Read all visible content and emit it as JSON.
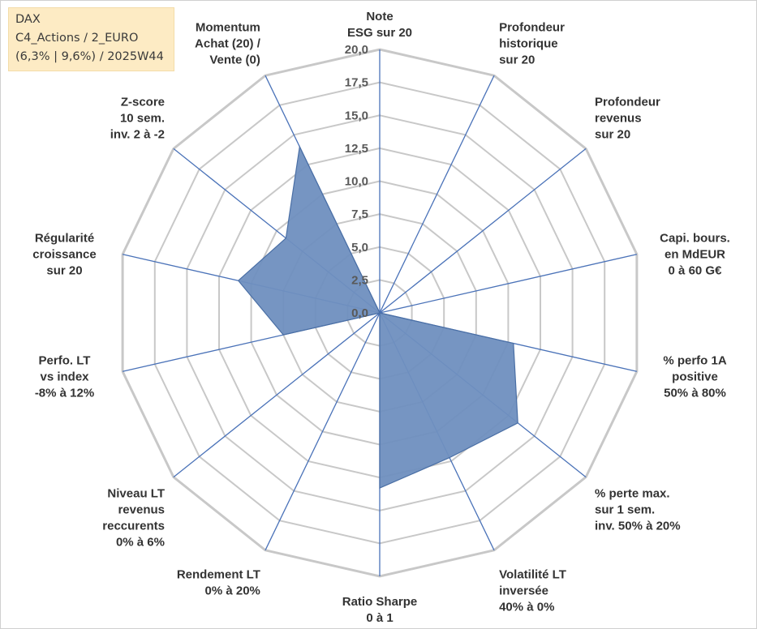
{
  "header": {
    "line1": "DAX",
    "line2": "C4_Actions / 2_EURO",
    "line3": "(6,3% | 9,6%) / 2025W44"
  },
  "chart_data": {
    "type": "radar",
    "title": "",
    "range": [
      0,
      20
    ],
    "tick_labels": [
      "0,0",
      "2,5",
      "5,0",
      "7,5",
      "10,0",
      "12,5",
      "15,0",
      "17,5",
      "20,0"
    ],
    "axes": [
      [
        "Note",
        "ESG sur 20"
      ],
      [
        "Profondeur",
        "historique",
        "sur 20"
      ],
      [
        "Profondeur",
        "revenus",
        "sur 20"
      ],
      [
        "Capi. bours.",
        "en MdEUR",
        "0 à 60 G€"
      ],
      [
        "% perfo 1A",
        "positive",
        "50% à 80%"
      ],
      [
        "% perte max.",
        "sur 1 sem.",
        "inv. 50% à 20%"
      ],
      [
        "Volatilité LT",
        "inversée",
        "40% à 0%"
      ],
      [
        "Ratio Sharpe",
        "0 à 1"
      ],
      [
        "Rendement LT",
        "0% à 20%"
      ],
      [
        "Niveau LT",
        "revenus",
        "reccurents",
        "0% à 6%"
      ],
      [
        "Perfo. LT",
        "vs index",
        "-8% à 12%"
      ],
      [
        "Régularité",
        "croissance",
        "sur 20"
      ],
      [
        "Z-score",
        "10 sem.",
        "inv. 2 à -2"
      ],
      [
        "Momentum",
        "Achat (20) /",
        "Vente (0)"
      ]
    ],
    "series": [
      {
        "name": "DAX",
        "color": "#6f8fbf",
        "stroke": "#4a6fa5",
        "values": [
          0,
          0,
          0,
          0,
          10.4,
          13.4,
          12.2,
          13.3,
          0,
          0,
          7.5,
          11.0,
          9.1,
          14.0
        ]
      }
    ],
    "grid": true,
    "grid_color": "#c8c8c8",
    "axis_color": "#4a72b8"
  }
}
